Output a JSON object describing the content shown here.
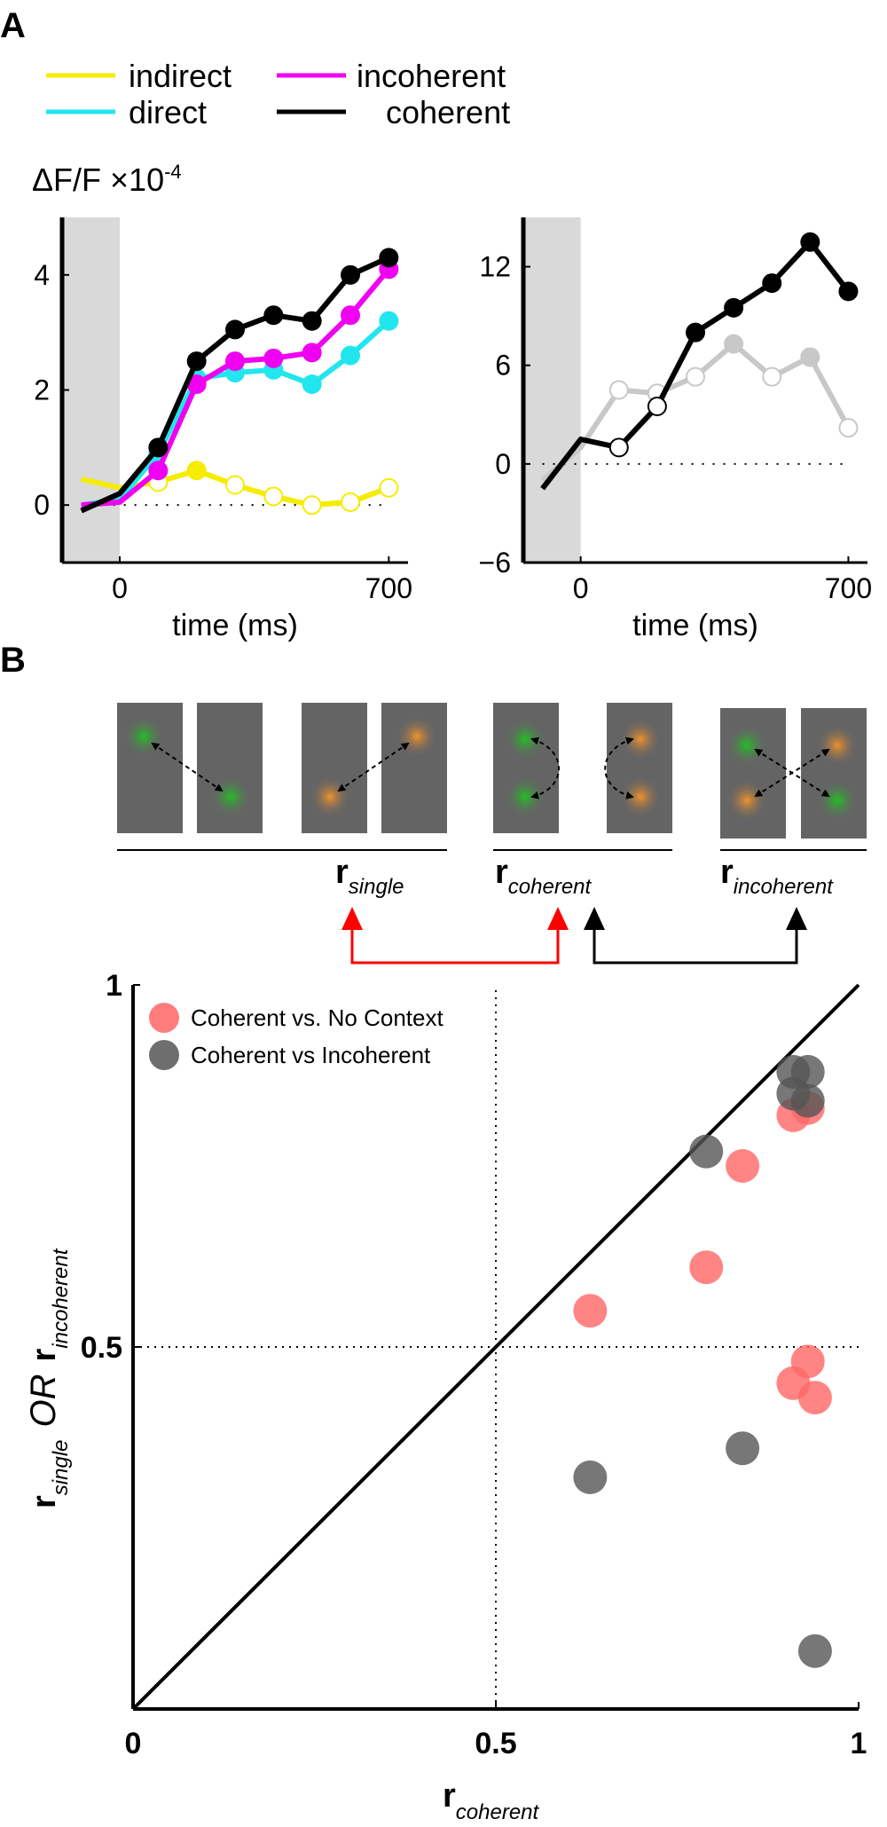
{
  "panel_a_label": "A",
  "panel_b_label": "B",
  "legend_a": [
    {
      "label": "indirect",
      "color": "#f5ec00"
    },
    {
      "label": "direct",
      "color": "#22e6ee"
    },
    {
      "label": "incoherent",
      "color": "#f000f0"
    },
    {
      "label": "coherent",
      "color": "#000000"
    }
  ],
  "y_unit": "ΔF/F ×10",
  "y_unit_exp": "-4",
  "schematic": {
    "labels": [
      {
        "main": "r",
        "sub": "single"
      },
      {
        "main": "r",
        "sub": "coherent"
      },
      {
        "main": "r",
        "sub": "incoherent"
      }
    ],
    "colors": {
      "green": "#22b322",
      "orange": "#ee8c22",
      "panel": "#646464",
      "red_arrow": "#ff0000",
      "black_arrow": "#000000"
    }
  },
  "chart_data": [
    {
      "type": "line",
      "xlabel": "time (ms)",
      "x_ticks": [
        "0",
        "700"
      ],
      "y_ticks": [
        "0",
        "2",
        "4"
      ],
      "xlim": [
        -150,
        750
      ],
      "ylim": [
        -1,
        5
      ],
      "stim_shade_x": [
        -150,
        0
      ],
      "series": [
        {
          "name": "coherent",
          "color": "#000000",
          "x": [
            -100,
            0,
            100,
            200,
            300,
            400,
            500,
            600,
            700
          ],
          "y": [
            -0.1,
            0.2,
            1.0,
            2.5,
            3.05,
            3.3,
            3.2,
            4.0,
            4.3
          ],
          "filled": [
            false,
            false,
            true,
            true,
            true,
            true,
            true,
            true,
            true
          ]
        },
        {
          "name": "incoherent",
          "color": "#f000f0",
          "x": [
            -100,
            0,
            100,
            200,
            300,
            400,
            500,
            600,
            700
          ],
          "y": [
            0.0,
            0.05,
            0.6,
            2.1,
            2.5,
            2.55,
            2.65,
            3.3,
            4.1
          ],
          "filled": [
            false,
            false,
            true,
            true,
            true,
            true,
            true,
            true,
            true
          ]
        },
        {
          "name": "direct",
          "color": "#22e6ee",
          "x": [
            -100,
            0,
            100,
            200,
            300,
            400,
            500,
            600,
            700
          ],
          "y": [
            0.0,
            0.1,
            0.9,
            2.2,
            2.3,
            2.35,
            2.1,
            2.6,
            3.2
          ],
          "filled": [
            false,
            false,
            true,
            true,
            true,
            true,
            true,
            true,
            true
          ]
        },
        {
          "name": "indirect",
          "color": "#f5ec00",
          "x": [
            -100,
            0,
            100,
            200,
            300,
            400,
            500,
            600,
            700
          ],
          "y": [
            0.45,
            0.3,
            0.4,
            0.6,
            0.35,
            0.15,
            0.0,
            0.05,
            0.3
          ],
          "filled": [
            false,
            false,
            false,
            true,
            false,
            false,
            false,
            false,
            false
          ]
        }
      ]
    },
    {
      "type": "line",
      "xlabel": "time (ms)",
      "x_ticks": [
        "0",
        "700"
      ],
      "y_ticks": [
        "−6",
        "0",
        "6",
        "12"
      ],
      "xlim": [
        -150,
        750
      ],
      "ylim": [
        -6,
        15
      ],
      "stim_shade_x": [
        -150,
        0
      ],
      "series": [
        {
          "name": "",
          "color": "#000000",
          "x": [
            -100,
            0,
            100,
            200,
            300,
            400,
            500,
            600,
            700
          ],
          "y": [
            -1.5,
            1.5,
            1.0,
            3.5,
            8.0,
            9.5,
            11.0,
            13.5,
            10.5
          ],
          "filled": [
            false,
            false,
            false,
            false,
            true,
            true,
            true,
            true,
            true
          ]
        },
        {
          "name": "",
          "color": "#c8c8c8",
          "x": [
            -100,
            0,
            100,
            200,
            300,
            400,
            500,
            600,
            700
          ],
          "y": [
            -1.0,
            1.0,
            4.5,
            4.3,
            5.3,
            7.3,
            5.3,
            6.5,
            2.2
          ],
          "filled": [
            false,
            false,
            false,
            false,
            false,
            true,
            false,
            true,
            false
          ]
        }
      ]
    },
    {
      "type": "scatter",
      "xlabel_main": "r",
      "xlabel_sub": "coherent",
      "ylabel_parts": {
        "single": "single",
        "or": "OR",
        "incoherent": "incoherent",
        "main": "r"
      },
      "x_ticks": [
        "0",
        "0.5",
        "1"
      ],
      "y_ticks": [
        "0.5",
        "1"
      ],
      "xlim": [
        0,
        1
      ],
      "ylim": [
        0,
        1
      ],
      "series": [
        {
          "name": "Coherent vs. No Context",
          "color": "#ff6666",
          "points": [
            [
              0.63,
              0.55
            ],
            [
              0.79,
              0.61
            ],
            [
              0.84,
              0.75
            ],
            [
              0.91,
              0.82
            ],
            [
              0.93,
              0.83
            ],
            [
              0.91,
              0.45
            ],
            [
              0.93,
              0.48
            ],
            [
              0.94,
              0.43
            ]
          ]
        },
        {
          "name": "Coherent vs Incoherent",
          "color": "#555555",
          "points": [
            [
              0.63,
              0.32
            ],
            [
              0.84,
              0.36
            ],
            [
              0.79,
              0.77
            ],
            [
              0.91,
              0.88
            ],
            [
              0.93,
              0.88
            ],
            [
              0.91,
              0.85
            ],
            [
              0.93,
              0.84
            ],
            [
              0.94,
              0.08
            ]
          ]
        }
      ]
    }
  ]
}
